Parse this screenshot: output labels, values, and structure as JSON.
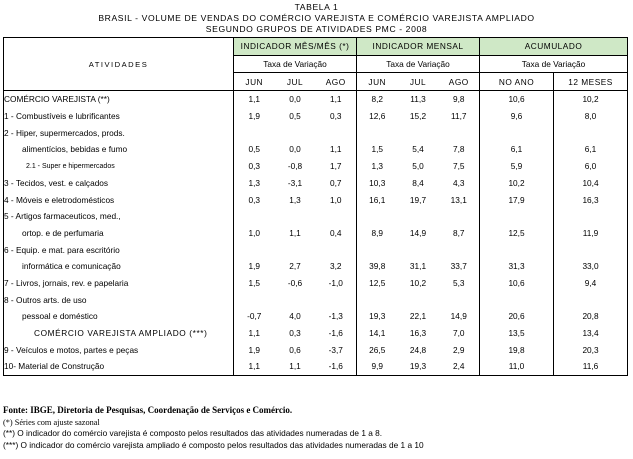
{
  "titles": {
    "line1": "TABELA 1",
    "line2": "BRASIL - VOLUME DE VENDAS DO COMÉRCIO VAREJISTA E COMÉRCIO VAREJISTA AMPLIADO",
    "line3": "SEGUNDO GRUPOS DE ATIVIDADES PMC - 2008"
  },
  "header": {
    "atividades": "ATIVIDADES",
    "groups": [
      "INDICADOR MÊS/MÊS (*)",
      "INDICADOR MENSAL",
      "ACUMULADO"
    ],
    "taxa": "Taxa de Variação",
    "months": [
      "JUN",
      "JUL",
      "AGO",
      "JUN",
      "JUL",
      "AGO",
      "NO ANO",
      "12 MESES"
    ]
  },
  "rows": [
    {
      "label": "COMÉRCIO VAREJISTA (**)",
      "values": [
        "1,1",
        "0,0",
        "1,1",
        "8,2",
        "11,3",
        "9,8",
        "10,6",
        "10,2"
      ]
    },
    {
      "label": "1 - Combustíveis e lubrificantes",
      "values": [
        "1,9",
        "0,5",
        "0,3",
        "12,6",
        "15,2",
        "11,7",
        "9,6",
        "8,0"
      ]
    },
    {
      "label": "2 - Hiper, supermercados, prods.",
      "values": []
    },
    {
      "label": "alimentícios, bebidas e fumo",
      "values": [
        "0,5",
        "0,0",
        "1,1",
        "1,5",
        "5,4",
        "7,8",
        "6,1",
        "6,1"
      ]
    },
    {
      "label": "2.1 - Super e hipermercados",
      "values": [
        "0,3",
        "-0,8",
        "1,7",
        "1,3",
        "5,0",
        "7,5",
        "5,9",
        "6,0"
      ]
    },
    {
      "label": "3 - Tecidos, vest. e calçados",
      "values": [
        "1,3",
        "-3,1",
        "0,7",
        "10,3",
        "8,4",
        "4,3",
        "10,2",
        "10,4"
      ]
    },
    {
      "label": "4 - Móveis e eletrodomésticos",
      "values": [
        "0,3",
        "1,3",
        "1,0",
        "16,1",
        "19,7",
        "13,1",
        "17,9",
        "16,3"
      ]
    },
    {
      "label": "5 - Artigos farmaceuticos, med.,",
      "values": []
    },
    {
      "label": "ortop. e de perfumaria",
      "values": [
        "1,0",
        "1,1",
        "0,4",
        "8,9",
        "14,9",
        "8,7",
        "12,5",
        "11,9"
      ]
    },
    {
      "label": "6 - Equip. e mat. para escritório",
      "values": []
    },
    {
      "label": "informática e comunicação",
      "values": [
        "1,9",
        "2,7",
        "3,2",
        "39,8",
        "31,1",
        "33,7",
        "31,3",
        "33,0"
      ]
    },
    {
      "label": "7 - Livros, jornais, rev. e papelaria",
      "values": [
        "1,5",
        "-0,6",
        "-1,0",
        "12,5",
        "10,2",
        "5,3",
        "10,6",
        "9,4"
      ]
    },
    {
      "label": "8 - Outros arts. de uso",
      "values": []
    },
    {
      "label": "pessoal e doméstico",
      "values": [
        "-0,7",
        "4,0",
        "-1,3",
        "19,3",
        "22,1",
        "14,9",
        "20,6",
        "20,8"
      ]
    },
    {
      "label": "COMÉRCIO VAREJISTA AMPLIADO (***)",
      "values": [
        "1,1",
        "0,3",
        "-1,6",
        "14,1",
        "16,3",
        "7,0",
        "13,5",
        "13,4"
      ]
    },
    {
      "label": "9 - Veículos e motos, partes e peças",
      "values": [
        "1,9",
        "0,6",
        "-3,7",
        "26,5",
        "24,8",
        "2,9",
        "19,8",
        "20,3"
      ]
    },
    {
      "label": "10- Material de Construção",
      "values": [
        "1,1",
        "1,1",
        "-1,6",
        "9,9",
        "19,3",
        "2,4",
        "11,0",
        "11,6"
      ]
    }
  ],
  "notes": {
    "source": "Fonte: IBGE, Diretoria de Pesquisas, Coordenação de Serviços e Comércio.",
    "n1": "(*) Séries com ajuste sazonal",
    "n2": "(**) O indicador do comércio varejista é composto pelos resultados das atividades numeradas de 1 a 8.",
    "n3": "(***) O indicador do comércio varejista ampliado é composto pelos resultados das atividades numeradas de 1 a 10"
  }
}
